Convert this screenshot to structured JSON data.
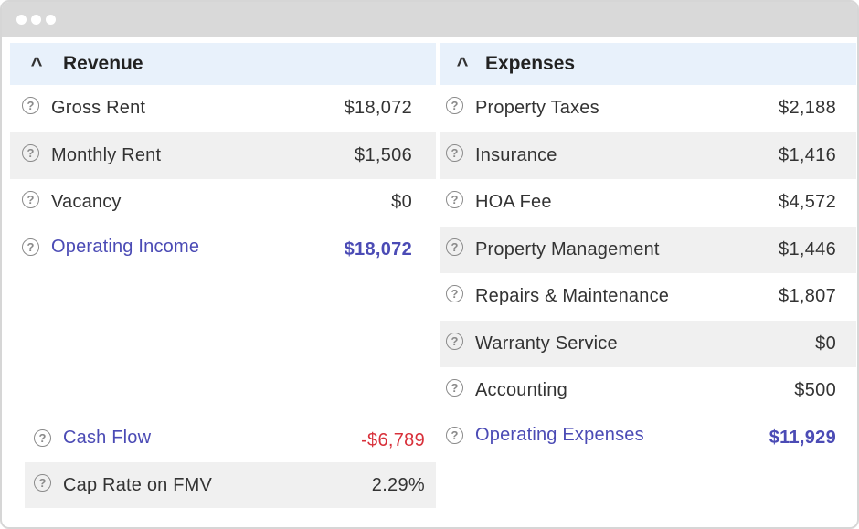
{
  "window": {
    "controls": [
      "dot",
      "dot",
      "dot"
    ]
  },
  "revenue": {
    "title": "Revenue",
    "rows": [
      {
        "label": "Gross Rent",
        "value": "$18,072"
      },
      {
        "label": "Monthly Rent",
        "value": "$1,506"
      },
      {
        "label": "Vacancy",
        "value": "$0"
      }
    ],
    "total": {
      "label": "Operating Income",
      "value": "$18,072"
    }
  },
  "expenses": {
    "title": "Expenses",
    "rows": [
      {
        "label": "Property Taxes",
        "value": "$2,188"
      },
      {
        "label": "Insurance",
        "value": "$1,416"
      },
      {
        "label": "HOA Fee",
        "value": "$4,572"
      },
      {
        "label": "Property Management",
        "value": "$1,446"
      },
      {
        "label": "Repairs & Maintenance",
        "value": "$1,807"
      },
      {
        "label": "Warranty Service",
        "value": "$0"
      },
      {
        "label": "Accounting",
        "value": "$500"
      }
    ],
    "total": {
      "label": "Operating Expenses",
      "value": "$11,929"
    }
  },
  "summary": {
    "cash_flow": {
      "label": "Cash Flow",
      "value": "-$6,789"
    },
    "cap_rate": {
      "label": "Cap Rate on FMV",
      "value": "2.29%"
    }
  },
  "icons": {
    "help": "?",
    "collapse": "^"
  },
  "colors": {
    "header_bg": "#e8f1fb",
    "total_text": "#4b4bb5",
    "negative": "#d8303a",
    "shaded_row": "#f0f0f0"
  }
}
